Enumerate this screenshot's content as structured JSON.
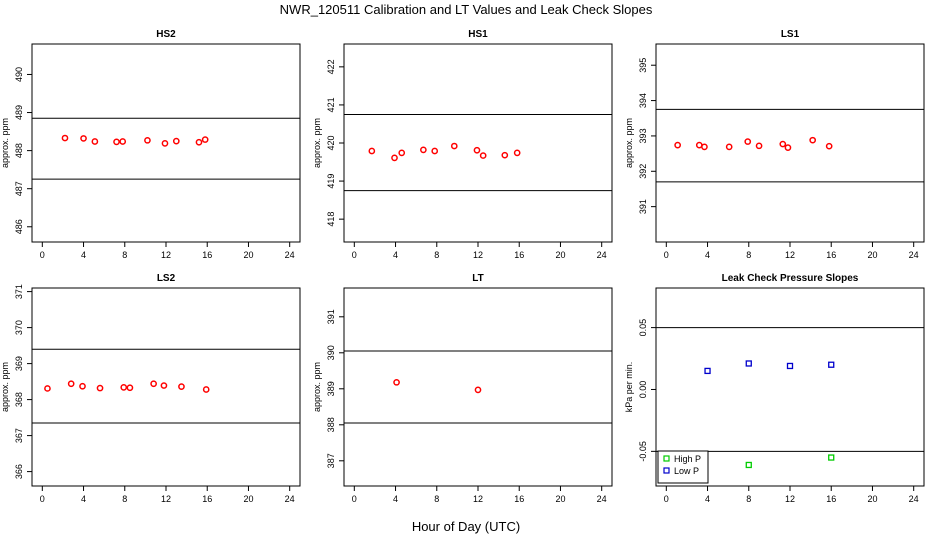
{
  "figure": {
    "title": "NWR_120511  Calibration and LT Values and Leak Check Slopes",
    "xlabel": "Hour of Day (UTC)"
  },
  "chart_data": [
    {
      "type": "scatter",
      "title": "HS2",
      "ylabel": "approx. ppm",
      "xlim": [
        -1,
        25
      ],
      "ylim": [
        485.6,
        490.8
      ],
      "xticks": [
        0,
        4,
        8,
        12,
        16,
        20,
        24
      ],
      "yticks": [
        486,
        487,
        488,
        489,
        490
      ],
      "hlines": [
        488.85,
        487.25
      ],
      "series": [
        {
          "color": "#ff0000",
          "marker": "circle",
          "x": [
            2.2,
            4.0,
            5.1,
            7.2,
            7.8,
            10.2,
            11.9,
            13.0,
            15.2,
            15.8
          ],
          "y": [
            488.33,
            488.32,
            488.24,
            488.23,
            488.24,
            488.27,
            488.19,
            488.25,
            488.22,
            488.29
          ]
        }
      ]
    },
    {
      "type": "scatter",
      "title": "HS1",
      "ylabel": "approx. ppm",
      "xlim": [
        -1,
        25
      ],
      "ylim": [
        417.4,
        422.6
      ],
      "xticks": [
        0,
        4,
        8,
        12,
        16,
        20,
        24
      ],
      "yticks": [
        418,
        419,
        420,
        421,
        422
      ],
      "hlines": [
        420.75,
        418.75
      ],
      "series": [
        {
          "color": "#ff0000",
          "marker": "circle",
          "x": [
            1.7,
            3.9,
            4.6,
            6.7,
            7.8,
            9.7,
            11.9,
            12.5,
            14.6,
            15.8
          ],
          "y": [
            419.79,
            419.61,
            419.74,
            419.82,
            419.79,
            419.92,
            419.81,
            419.67,
            419.68,
            419.74
          ]
        }
      ]
    },
    {
      "type": "scatter",
      "title": "LS1",
      "ylabel": "approx. ppm",
      "xlim": [
        -1,
        25
      ],
      "ylim": [
        390.0,
        395.6
      ],
      "xticks": [
        0,
        4,
        8,
        12,
        16,
        20,
        24
      ],
      "yticks": [
        391,
        392,
        393,
        394,
        395
      ],
      "hlines": [
        393.75,
        391.7
      ],
      "series": [
        {
          "color": "#ff0000",
          "marker": "circle",
          "x": [
            1.1,
            3.2,
            3.7,
            6.1,
            7.9,
            9.0,
            11.3,
            11.8,
            14.2,
            15.8
          ],
          "y": [
            392.74,
            392.74,
            392.69,
            392.69,
            392.84,
            392.72,
            392.77,
            392.67,
            392.88,
            392.71
          ]
        }
      ]
    },
    {
      "type": "scatter",
      "title": "LS2",
      "ylabel": "approx. ppm",
      "xlim": [
        -1,
        25
      ],
      "ylim": [
        365.6,
        371.1
      ],
      "xticks": [
        0,
        4,
        8,
        12,
        16,
        20,
        24
      ],
      "yticks": [
        366,
        367,
        368,
        369,
        370,
        371
      ],
      "hlines": [
        369.4,
        367.35
      ],
      "series": [
        {
          "color": "#ff0000",
          "marker": "circle",
          "x": [
            0.5,
            2.8,
            3.9,
            5.6,
            7.9,
            8.5,
            10.8,
            11.8,
            13.5,
            15.9
          ],
          "y": [
            368.31,
            368.44,
            368.37,
            368.32,
            368.34,
            368.33,
            368.44,
            368.39,
            368.36,
            368.28
          ]
        }
      ]
    },
    {
      "type": "scatter",
      "title": "LT",
      "ylabel": "approx. ppm",
      "xlim": [
        -1,
        25
      ],
      "ylim": [
        386.3,
        391.8
      ],
      "xticks": [
        0,
        4,
        8,
        12,
        16,
        20,
        24
      ],
      "yticks": [
        387,
        388,
        389,
        390,
        391
      ],
      "hlines": [
        390.05,
        388.05
      ],
      "series": [
        {
          "color": "#ff0000",
          "marker": "circle",
          "x": [
            4.1,
            12.0
          ],
          "y": [
            389.18,
            388.97
          ]
        }
      ]
    },
    {
      "type": "scatter",
      "title": "Leak Check Pressure Slopes",
      "ylabel": "kPa per min.",
      "xlim": [
        -1,
        25
      ],
      "ylim": [
        -0.078,
        0.082
      ],
      "xticks": [
        0,
        4,
        8,
        12,
        16,
        20,
        24
      ],
      "yticks": [
        -0.05,
        0.0,
        0.05
      ],
      "ytick_labels": [
        "-0.05",
        "0.00",
        "0.05"
      ],
      "hlines": [
        0.05,
        -0.05
      ],
      "legend_position": "bottom-left",
      "series": [
        {
          "name": "High P",
          "color": "#00cc00",
          "marker": "square",
          "x": [
            8,
            16
          ],
          "y": [
            -0.061,
            -0.055
          ]
        },
        {
          "name": "Low P",
          "color": "#0000cc",
          "marker": "square",
          "x": [
            4,
            8,
            12,
            16
          ],
          "y": [
            0.015,
            0.021,
            0.019,
            0.02
          ]
        }
      ]
    }
  ]
}
